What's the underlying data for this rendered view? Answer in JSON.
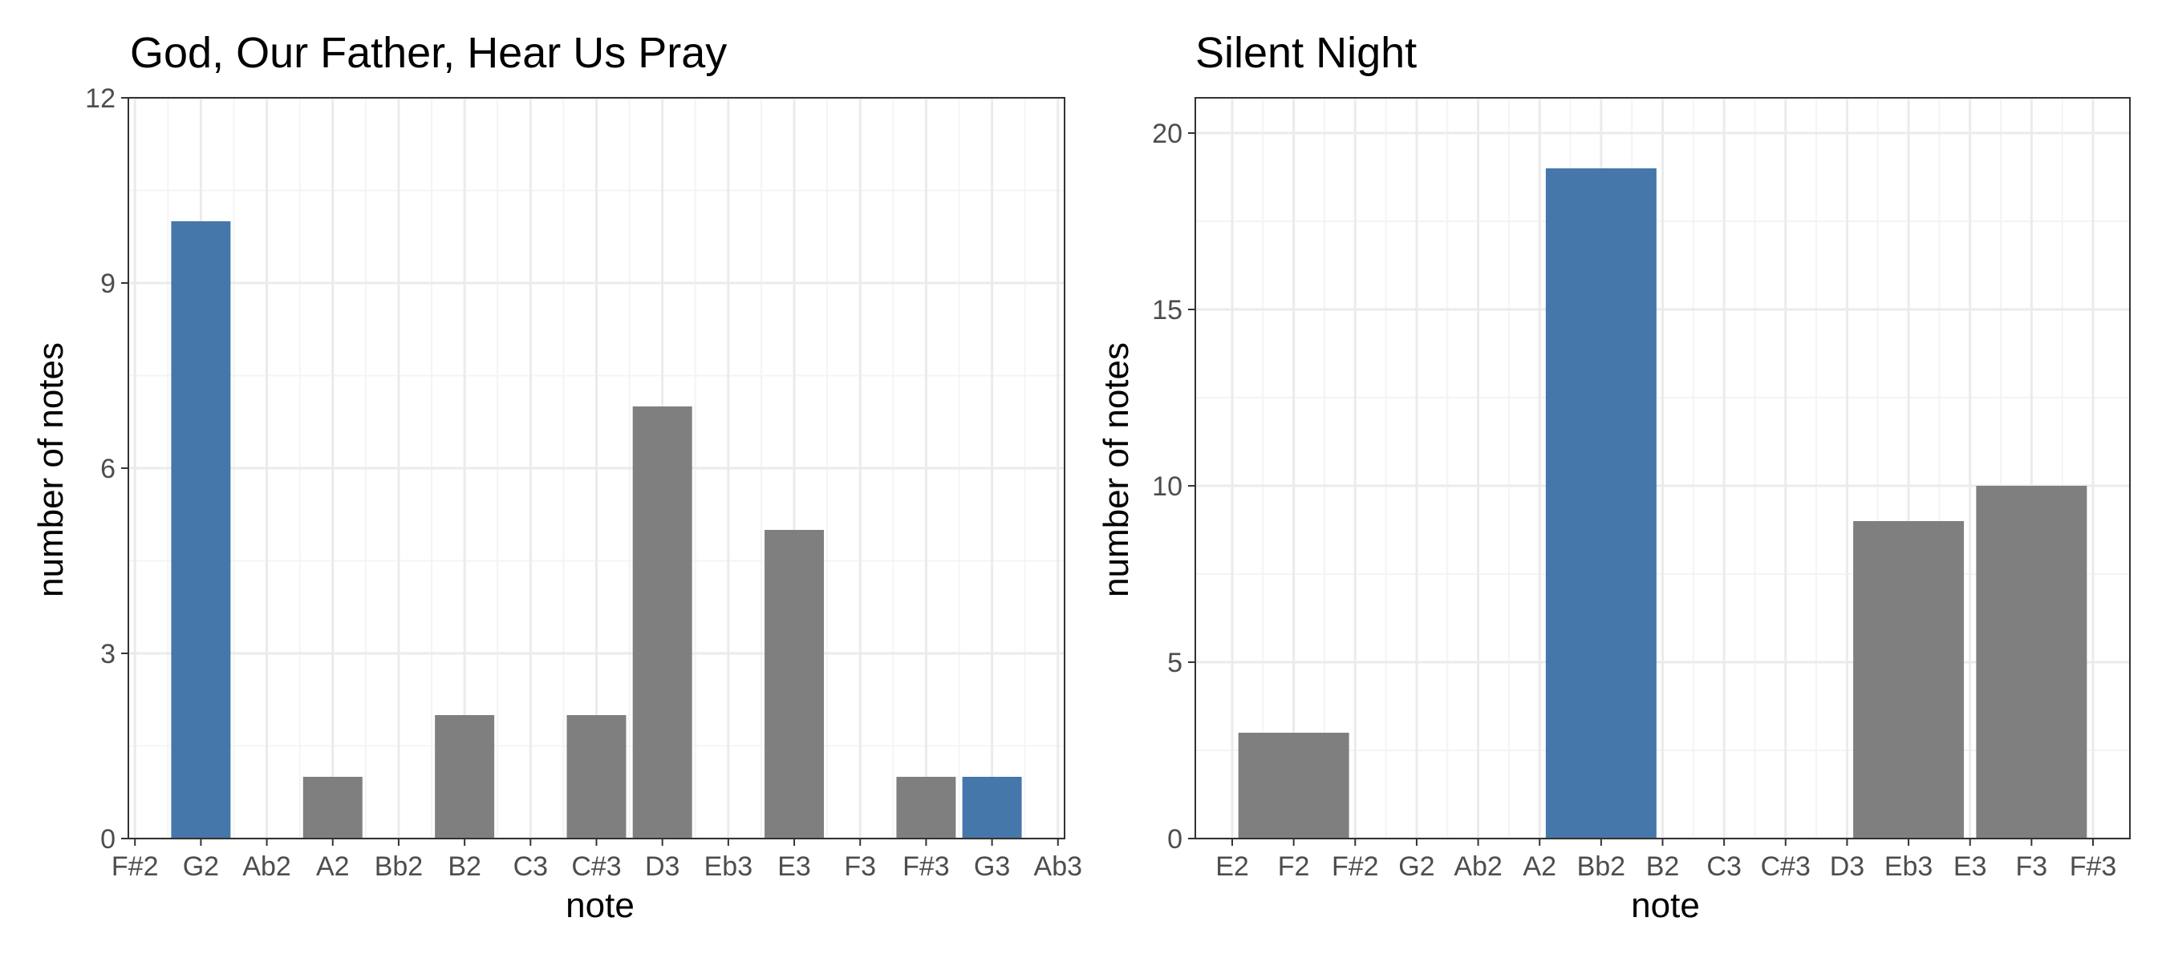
{
  "colors": {
    "highlight": "#4577AA",
    "default": "#7F7F7F",
    "grid_major": "#EBEBEB",
    "grid_minor": "#F4F4F4",
    "panel_border": "#333333"
  },
  "chart_data": [
    {
      "type": "bar",
      "title": "God, Our Father, Hear Us Pray",
      "xlabel": "note",
      "ylabel": "number of notes",
      "categories": [
        "F#2",
        "G2",
        "Ab2",
        "A2",
        "Bb2",
        "B2",
        "C3",
        "C#3",
        "D3",
        "Eb3",
        "E3",
        "F3",
        "F#3",
        "G3",
        "Ab3"
      ],
      "x_tick_labels": [
        "F#2",
        "G2",
        "Ab2",
        "A2",
        "Bb2",
        "B2",
        "C3",
        "C#3",
        "D3",
        "Eb3",
        "E3",
        "F3",
        "F#3",
        "G3",
        "Ab3"
      ],
      "bar_width_units": 0.9,
      "bars": [
        {
          "x": "G2",
          "value": 10,
          "highlight": true
        },
        {
          "x": "A2",
          "value": 1,
          "highlight": false
        },
        {
          "x": "B2",
          "value": 2,
          "highlight": false
        },
        {
          "x": "C#3",
          "value": 2,
          "highlight": false
        },
        {
          "x": "D3",
          "value": 7,
          "highlight": false
        },
        {
          "x": "E3",
          "value": 5,
          "highlight": false
        },
        {
          "x": "F#3",
          "value": 1,
          "highlight": false
        },
        {
          "x": "G3",
          "value": 1,
          "highlight": true
        }
      ],
      "y_ticks": [
        0,
        3,
        6,
        9,
        12
      ],
      "ylim": [
        0,
        12
      ],
      "grid": true
    },
    {
      "type": "bar",
      "title": "Silent Night",
      "xlabel": "note",
      "ylabel": "number of notes",
      "categories": [
        "E2",
        "F2",
        "F#2",
        "G2",
        "Ab2",
        "A2",
        "Bb2",
        "B2",
        "C3",
        "C#3",
        "D3",
        "Eb3",
        "E3",
        "F3",
        "F#3"
      ],
      "x_tick_labels": [
        "E2",
        "F2",
        "F#2",
        "G2",
        "Ab2",
        "A2",
        "Bb2",
        "B2",
        "C3",
        "C#3",
        "D3",
        "Eb3",
        "E3",
        "F3",
        "F#3"
      ],
      "bar_width_units": 1.8,
      "bars": [
        {
          "x": "F2",
          "value": 3,
          "highlight": false
        },
        {
          "x": "Bb2",
          "value": 19,
          "highlight": true
        },
        {
          "x": "Eb3",
          "value": 9,
          "highlight": false
        },
        {
          "x": "F3",
          "value": 10,
          "highlight": false
        }
      ],
      "y_ticks": [
        0,
        5,
        10,
        15,
        20
      ],
      "ylim": [
        0,
        21
      ],
      "grid": true
    }
  ]
}
